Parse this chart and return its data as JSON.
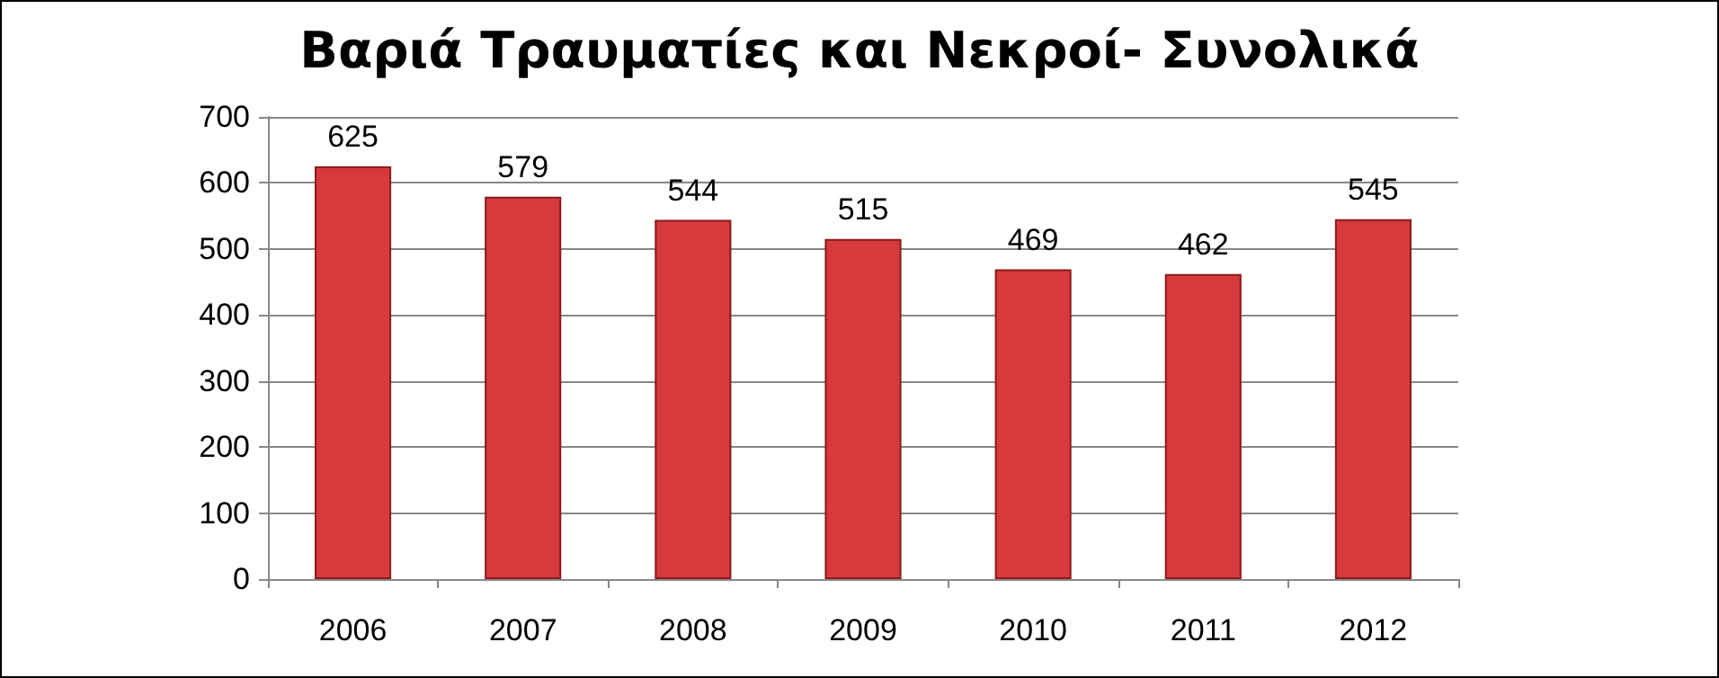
{
  "chart_data": {
    "type": "bar",
    "title": "Βαριά Τραυματίες και Νεκροί- Συνολικά",
    "categories": [
      "2006",
      "2007",
      "2008",
      "2009",
      "2010",
      "2011",
      "2012"
    ],
    "values": [
      625,
      579,
      544,
      515,
      469,
      462,
      545
    ],
    "color": "#d63a3c",
    "ylim": [
      0,
      700
    ],
    "yticks": [
      0,
      100,
      200,
      300,
      400,
      500,
      600,
      700
    ],
    "grid": "y",
    "data_labels": true
  }
}
